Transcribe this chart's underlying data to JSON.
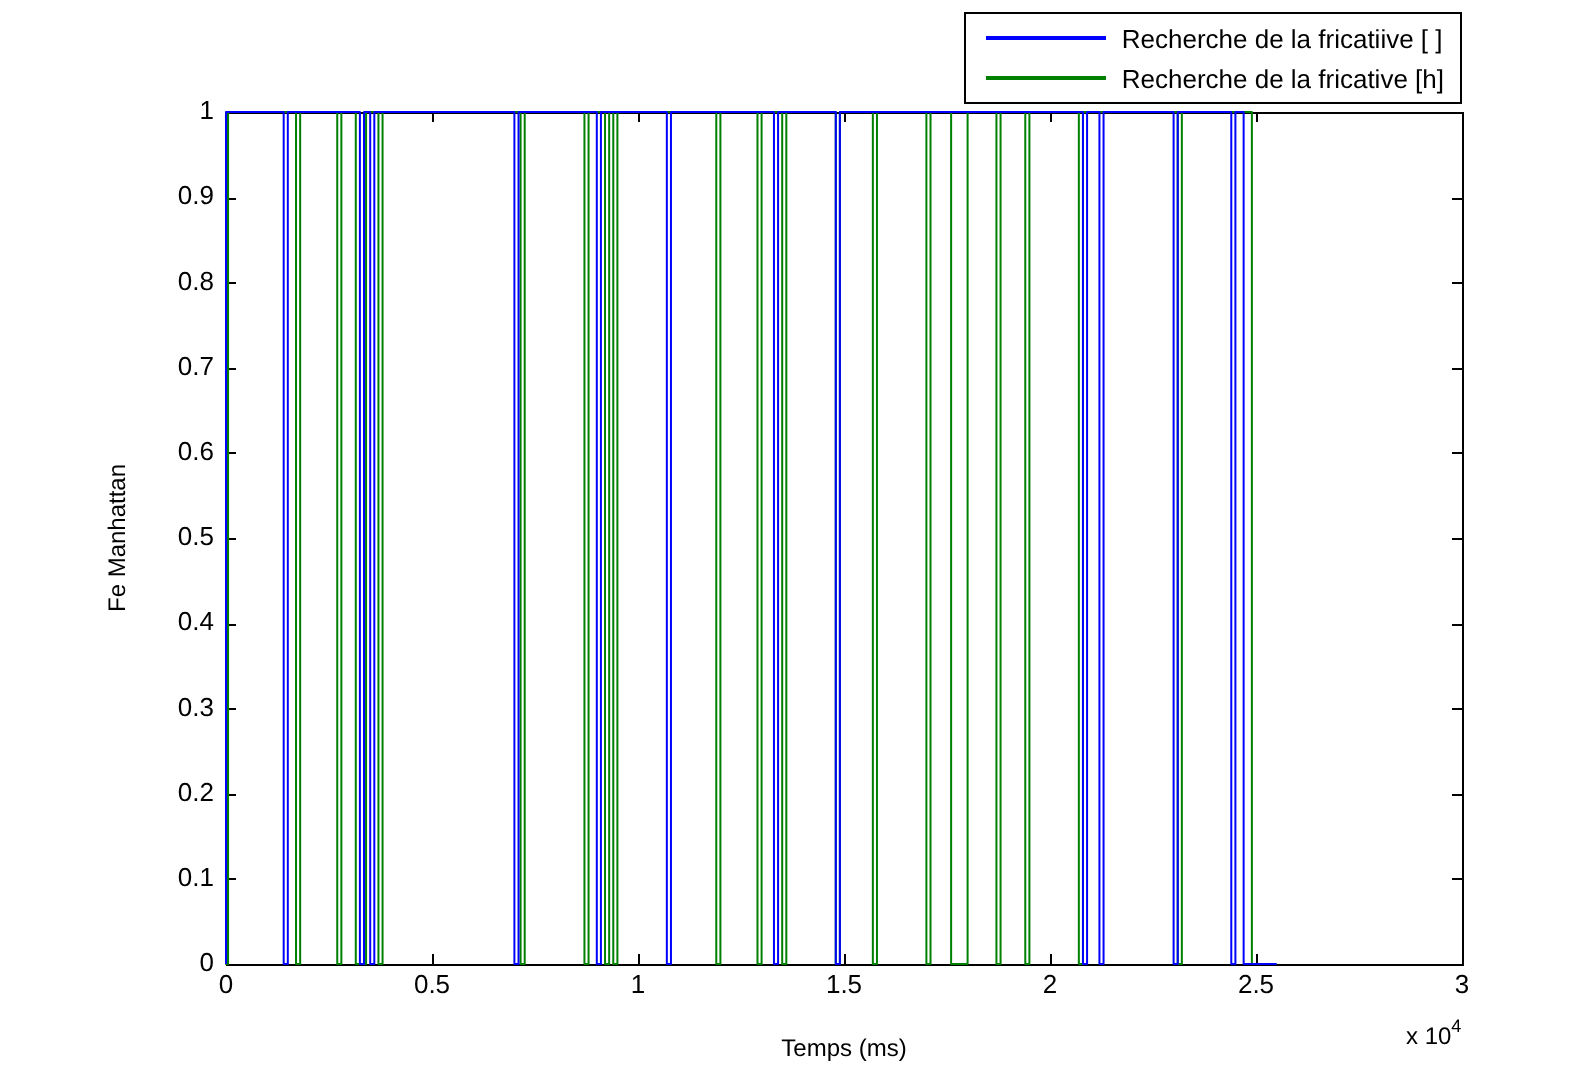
{
  "chart_data": {
    "type": "step",
    "xlabel": "Temps (ms)",
    "ylabel": "Fe Manhattan",
    "xlim": [
      0,
      3
    ],
    "xticks": [
      0,
      0.5,
      1,
      1.5,
      2,
      2.5,
      3
    ],
    "ylim": [
      0,
      1
    ],
    "yticks": [
      0,
      0.1,
      0.2,
      0.3,
      0.4,
      0.5,
      0.6,
      0.7,
      0.8,
      0.9,
      1
    ],
    "legend": "top right",
    "grid": false,
    "annotations": [
      "x 10$^{4}$"
    ],
    "series": [
      {
        "name": "Recherche de la fricatiive [ ]",
        "color": "#0000ff",
        "x": [
          0,
          0.14,
          0.15,
          0.325,
          0.335,
          0.35,
          0.36,
          0.7,
          0.71,
          0.9,
          0.91,
          1.07,
          1.08,
          1.33,
          1.34,
          1.48,
          1.49,
          2.08,
          2.09,
          2.12,
          2.13,
          2.3,
          2.31,
          2.44,
          2.45,
          2.47,
          2.48,
          2.55
        ],
        "values": [
          0,
          1,
          0,
          1,
          0,
          1,
          0,
          1,
          0,
          1,
          0,
          1,
          0,
          1,
          0,
          1,
          0,
          1,
          0,
          1,
          0,
          1,
          0,
          1,
          0,
          1,
          0,
          0
        ]
      },
      {
        "name": "Recherche de la fricative [h]",
        "color": "#008000",
        "x": [
          0,
          0.005,
          0.17,
          0.18,
          0.27,
          0.28,
          0.315,
          0.34,
          0.37,
          0.38,
          0.715,
          0.725,
          0.87,
          0.88,
          0.92,
          0.93,
          0.94,
          0.95,
          1.19,
          1.2,
          1.29,
          1.3,
          1.35,
          1.36,
          1.48,
          1.49,
          1.57,
          1.58,
          1.7,
          1.71,
          1.76,
          1.8,
          1.87,
          1.88,
          1.94,
          1.95,
          2.07,
          2.08,
          2.31,
          2.32,
          2.49,
          2.5,
          2.55
        ],
        "values": [
          1,
          0,
          1,
          0,
          1,
          0,
          1,
          0,
          1,
          0,
          1,
          0,
          1,
          0,
          1,
          0,
          1,
          0,
          1,
          0,
          1,
          0,
          1,
          0,
          1,
          0,
          1,
          0,
          1,
          0,
          1,
          0,
          1,
          0,
          1,
          0,
          1,
          0,
          1,
          0,
          1,
          0,
          0
        ]
      }
    ]
  }
}
